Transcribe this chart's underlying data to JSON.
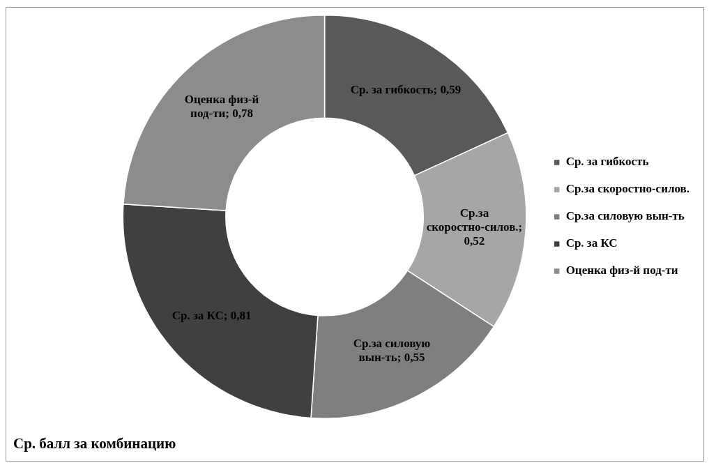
{
  "chart_data": {
    "type": "donut",
    "categories": [
      "Ср. за гибкость",
      "Ср.за скоростно-силов.",
      "Ср.за силовую вын-ть",
      "Ср. за КС",
      "Оценка физ-й под-ти"
    ],
    "values": [
      0.59,
      0.52,
      0.55,
      0.81,
      0.78
    ],
    "colors": [
      "#595959",
      "#a6a6a6",
      "#7f7f7f",
      "#404040",
      "#8c8c8c"
    ],
    "value_labels": [
      "Ср. за гибкость; 0,59",
      "Ср.за скоростно-силов.; 0,52",
      "Ср.за силовую вын-ть; 0,55",
      "Ср. за КС; 0,81",
      "Оценка физ-й под-ти; 0,78"
    ],
    "legend": "right",
    "annotations": [
      "Ср. балл за комбинацию"
    ]
  }
}
